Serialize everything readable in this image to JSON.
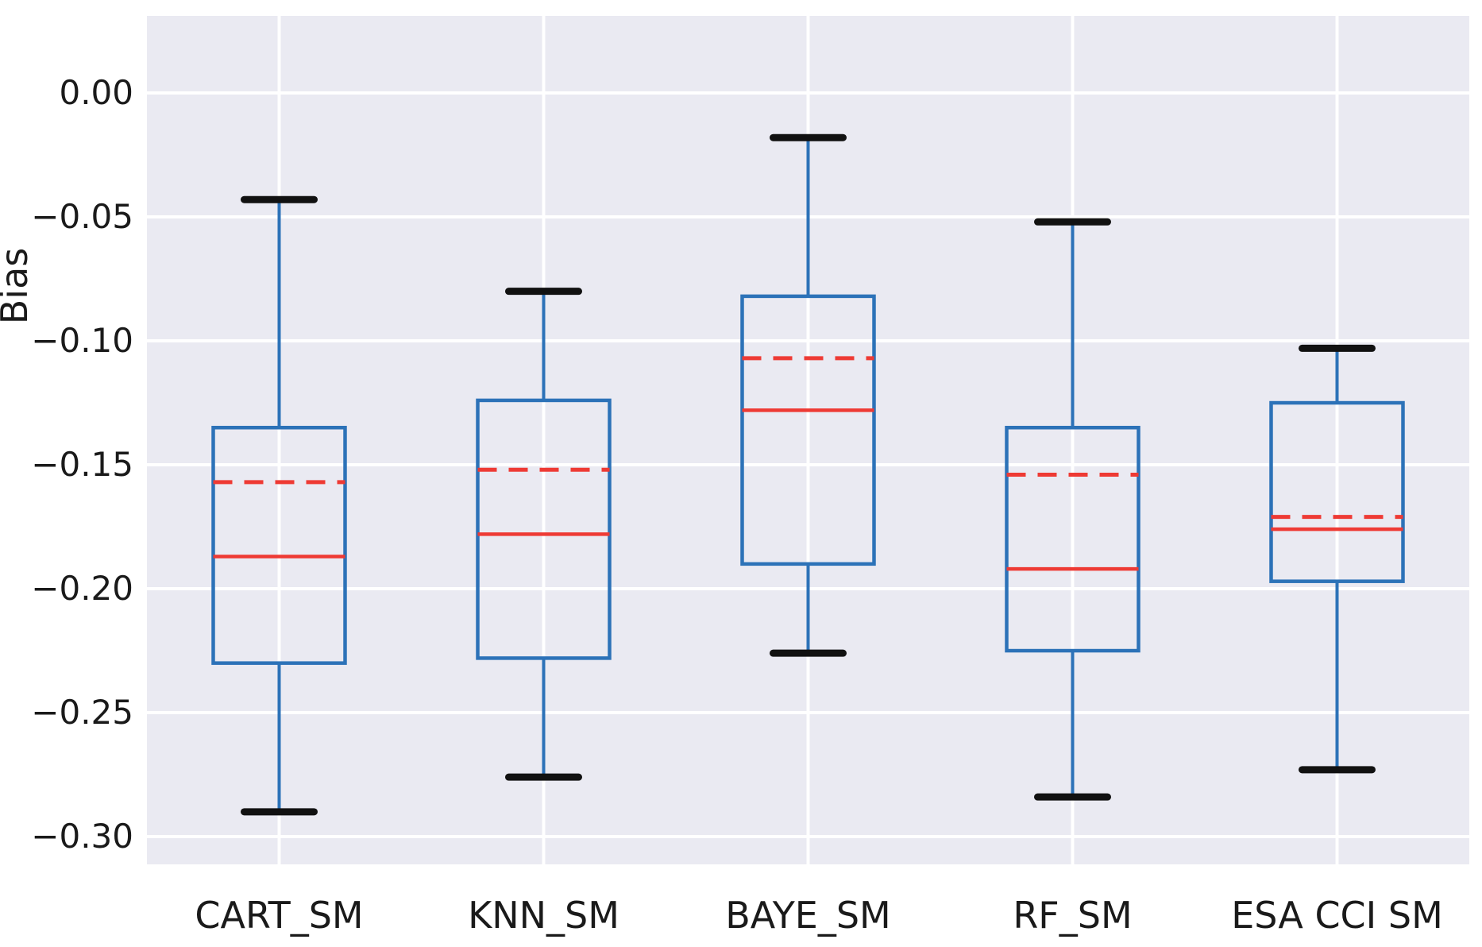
{
  "figure": {
    "background": "#ffffff",
    "plot_bg": "#eaeaf2",
    "grid_color": "#ffffff",
    "box_color": "#2c72b8",
    "whisker_color": "#2c72b8",
    "cap_color": "#111111",
    "median_color": "#ee3a34",
    "mean_color": "#ee3a34",
    "text_color": "#1a1a1a"
  },
  "chart_data": {
    "type": "boxplot",
    "title": "",
    "xlabel": "",
    "ylabel": "Bias",
    "grid": true,
    "legend": "none",
    "ylim": [
      -0.3112,
      0.0311
    ],
    "yticks": [
      0.0,
      -0.05,
      -0.1,
      -0.15,
      -0.2,
      -0.25,
      -0.3
    ],
    "ytick_labels": [
      "0.00",
      "−0.05",
      "−0.10",
      "−0.15",
      "−0.20",
      "−0.25",
      "−0.30"
    ],
    "categories": [
      "CART_SM",
      "KNN_SM",
      "BAYE_SM",
      "RF_SM",
      "ESA CCI SM"
    ],
    "series": [
      {
        "name": "CART_SM",
        "whisker_low": -0.29,
        "q1": -0.23,
        "median": -0.187,
        "mean": -0.157,
        "q3": -0.135,
        "whisker_high": -0.043
      },
      {
        "name": "KNN_SM",
        "whisker_low": -0.276,
        "q1": -0.228,
        "median": -0.178,
        "mean": -0.152,
        "q3": -0.124,
        "whisker_high": -0.08
      },
      {
        "name": "BAYE_SM",
        "whisker_low": -0.226,
        "q1": -0.19,
        "median": -0.128,
        "mean": -0.107,
        "q3": -0.082,
        "whisker_high": -0.018
      },
      {
        "name": "RF_SM",
        "whisker_low": -0.284,
        "q1": -0.225,
        "median": -0.192,
        "mean": -0.154,
        "q3": -0.135,
        "whisker_high": -0.052
      },
      {
        "name": "ESA CCI SM",
        "whisker_low": -0.273,
        "q1": -0.197,
        "median": -0.176,
        "mean": -0.171,
        "q3": -0.125,
        "whisker_high": -0.103
      }
    ],
    "style": {
      "median_line": "solid",
      "mean_line": "dashed"
    }
  }
}
